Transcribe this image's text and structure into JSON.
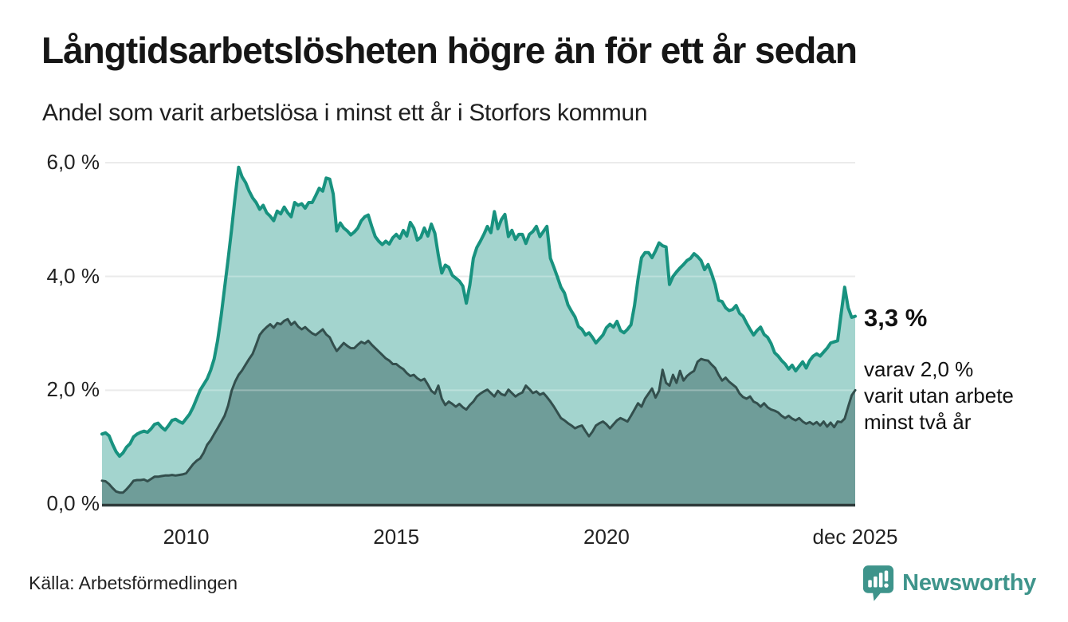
{
  "header": {
    "title": "Långtidsarbetslösheten högre än för ett år sedan",
    "subtitle": "Andel som varit arbetslösa i minst ett år i Storfors kommun"
  },
  "annotations": {
    "latest_total": "3,3 %",
    "subset_lines": [
      "varav 2,0 %",
      "varit utan arbete",
      "minst två år"
    ]
  },
  "axes": {
    "y_tick_labels": [
      "6,0 %",
      "4,0 %",
      "2,0 %",
      "0,0 %"
    ],
    "x_tick_labels": [
      "2010",
      "2015",
      "2020",
      "dec 2025"
    ]
  },
  "footer": {
    "source": "Källa: Arbetsförmedlingen",
    "brand": "Newsworthy",
    "brand_icon": "bar-chart-speech-bubble"
  },
  "colors": {
    "total_line": "#18927f",
    "total_fill": "#a3d4ce",
    "two_year_line": "#334f4d",
    "two_year_fill": "#6f9d99",
    "grid": "#e3e3e3",
    "axis": "#2f3a3a",
    "brand": "#3e948b"
  },
  "chart_data": {
    "type": "area",
    "title": "Andel som varit arbetslösa i minst ett år i Storfors kommun",
    "x_unit": "month",
    "x_range": [
      "2008-01",
      "2025-12"
    ],
    "x_tick_month_indices": [
      24,
      84,
      144,
      215
    ],
    "y_tick_values": [
      6,
      4,
      2,
      0
    ],
    "ylim": [
      0,
      6.3
    ],
    "grid": "horizontal",
    "legend": "none",
    "end_labels": {
      "total": "3,3 %",
      "two_years": "2,0 %"
    },
    "series": [
      {
        "name": "Andel arbetslösa minst ett år",
        "line_color": "#18927f",
        "fill_color": "#a3d4ce",
        "values": [
          1.23,
          1.25,
          1.2,
          1.05,
          0.92,
          0.84,
          0.9,
          1.0,
          1.06,
          1.18,
          1.23,
          1.26,
          1.28,
          1.26,
          1.32,
          1.4,
          1.42,
          1.35,
          1.3,
          1.38,
          1.47,
          1.49,
          1.45,
          1.42,
          1.5,
          1.58,
          1.7,
          1.85,
          2.0,
          2.1,
          2.2,
          2.35,
          2.55,
          2.87,
          3.3,
          3.8,
          4.3,
          4.83,
          5.4,
          5.92,
          5.75,
          5.65,
          5.5,
          5.38,
          5.3,
          5.18,
          5.25,
          5.12,
          5.06,
          4.98,
          5.15,
          5.1,
          5.22,
          5.12,
          5.05,
          5.3,
          5.25,
          5.28,
          5.2,
          5.3,
          5.3,
          5.42,
          5.55,
          5.5,
          5.73,
          5.71,
          5.45,
          4.8,
          4.94,
          4.85,
          4.8,
          4.73,
          4.78,
          4.85,
          4.98,
          5.05,
          5.08,
          4.88,
          4.7,
          4.62,
          4.56,
          4.62,
          4.57,
          4.68,
          4.74,
          4.67,
          4.81,
          4.71,
          4.95,
          4.85,
          4.64,
          4.69,
          4.85,
          4.71,
          4.92,
          4.76,
          4.37,
          4.06,
          4.2,
          4.16,
          4.02,
          3.97,
          3.92,
          3.83,
          3.53,
          3.85,
          4.32,
          4.51,
          4.62,
          4.74,
          4.88,
          4.77,
          5.14,
          4.84,
          5.0,
          5.09,
          4.7,
          4.81,
          4.65,
          4.74,
          4.74,
          4.58,
          4.74,
          4.79,
          4.88,
          4.7,
          4.79,
          4.88,
          4.32,
          4.16,
          3.99,
          3.81,
          3.71,
          3.5,
          3.39,
          3.29,
          3.12,
          3.07,
          2.97,
          3.01,
          2.93,
          2.83,
          2.9,
          2.97,
          3.1,
          3.16,
          3.11,
          3.21,
          3.05,
          3.01,
          3.07,
          3.15,
          3.49,
          3.95,
          4.33,
          4.42,
          4.42,
          4.33,
          4.45,
          4.59,
          4.54,
          4.52,
          3.86,
          4.0,
          4.08,
          4.15,
          4.21,
          4.28,
          4.32,
          4.4,
          4.35,
          4.28,
          4.12,
          4.21,
          4.05,
          3.86,
          3.58,
          3.56,
          3.45,
          3.4,
          3.42,
          3.49,
          3.35,
          3.3,
          3.18,
          3.07,
          2.97,
          3.05,
          3.11,
          2.98,
          2.93,
          2.82,
          2.66,
          2.6,
          2.52,
          2.46,
          2.37,
          2.44,
          2.34,
          2.42,
          2.5,
          2.39,
          2.52,
          2.6,
          2.64,
          2.6,
          2.67,
          2.74,
          2.83,
          2.85,
          2.87,
          3.35,
          3.81,
          3.45,
          3.28,
          3.3
        ]
      },
      {
        "name": "Andel arbetslösa minst två år",
        "line_color": "#334f4d",
        "fill_color": "#6f9d99",
        "values": [
          0.41,
          0.4,
          0.35,
          0.28,
          0.22,
          0.2,
          0.2,
          0.26,
          0.33,
          0.41,
          0.42,
          0.42,
          0.43,
          0.4,
          0.44,
          0.48,
          0.48,
          0.49,
          0.5,
          0.5,
          0.51,
          0.5,
          0.51,
          0.52,
          0.54,
          0.62,
          0.7,
          0.76,
          0.8,
          0.9,
          1.04,
          1.12,
          1.23,
          1.33,
          1.44,
          1.55,
          1.73,
          1.99,
          2.15,
          2.27,
          2.35,
          2.45,
          2.55,
          2.64,
          2.8,
          2.97,
          3.05,
          3.11,
          3.16,
          3.1,
          3.18,
          3.16,
          3.22,
          3.25,
          3.15,
          3.2,
          3.12,
          3.07,
          3.11,
          3.05,
          3.0,
          2.97,
          3.02,
          3.07,
          2.98,
          2.93,
          2.8,
          2.69,
          2.76,
          2.83,
          2.78,
          2.74,
          2.74,
          2.8,
          2.85,
          2.82,
          2.87,
          2.8,
          2.74,
          2.68,
          2.62,
          2.56,
          2.52,
          2.46,
          2.46,
          2.41,
          2.37,
          2.3,
          2.25,
          2.27,
          2.21,
          2.17,
          2.2,
          2.1,
          1.99,
          1.94,
          2.08,
          1.85,
          1.74,
          1.8,
          1.76,
          1.71,
          1.76,
          1.7,
          1.66,
          1.74,
          1.8,
          1.89,
          1.94,
          1.98,
          2.01,
          1.95,
          1.89,
          1.99,
          1.93,
          1.91,
          2.01,
          1.95,
          1.89,
          1.93,
          1.96,
          2.08,
          2.02,
          1.95,
          1.98,
          1.92,
          1.95,
          1.88,
          1.8,
          1.71,
          1.61,
          1.51,
          1.47,
          1.42,
          1.38,
          1.33,
          1.36,
          1.38,
          1.28,
          1.19,
          1.27,
          1.38,
          1.42,
          1.45,
          1.4,
          1.33,
          1.4,
          1.47,
          1.51,
          1.48,
          1.45,
          1.55,
          1.66,
          1.77,
          1.71,
          1.85,
          1.94,
          2.03,
          1.87,
          1.99,
          2.36,
          2.13,
          2.08,
          2.27,
          2.13,
          2.34,
          2.17,
          2.25,
          2.3,
          2.34,
          2.5,
          2.55,
          2.53,
          2.52,
          2.45,
          2.39,
          2.27,
          2.17,
          2.22,
          2.15,
          2.1,
          2.05,
          1.94,
          1.88,
          1.85,
          1.89,
          1.8,
          1.77,
          1.71,
          1.77,
          1.7,
          1.66,
          1.64,
          1.61,
          1.55,
          1.51,
          1.55,
          1.5,
          1.47,
          1.51,
          1.45,
          1.41,
          1.44,
          1.4,
          1.44,
          1.38,
          1.45,
          1.36,
          1.43,
          1.35,
          1.45,
          1.44,
          1.5,
          1.71,
          1.91,
          2.0
        ]
      }
    ]
  }
}
